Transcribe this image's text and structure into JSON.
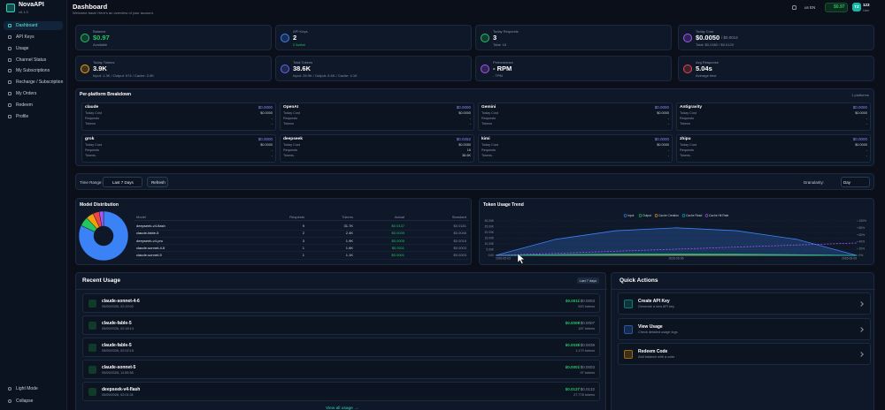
{
  "sidebar": {
    "brand": "NovaAPI",
    "version": "v0.1.0",
    "nav": [
      "Dashboard",
      "API Keys",
      "Usage",
      "Channel Status",
      "My Subscriptions",
      "Recharge / Subscription",
      "My Orders",
      "Redeem",
      "Profile"
    ],
    "footer": [
      "Light Mode",
      "Collapse"
    ]
  },
  "header": {
    "title": "Dashboard",
    "subtitle": "Welcome back! Here's an overview of your account.",
    "language": "us EN",
    "balance": "$0.97",
    "avatar": "TZ",
    "username": "123",
    "role": "User"
  },
  "stats": [
    {
      "label": "Balance",
      "value": "$0.97",
      "sub": "Available"
    },
    {
      "label": "API Keys",
      "value": "2",
      "sub": "2 Active"
    },
    {
      "label": "Today Requests",
      "value": "3",
      "sub": "Total: 16"
    },
    {
      "label": "Today Cost",
      "value": "$0.0050",
      "extra": "/ $0.0014",
      "sub": "Total: $0.0282 / $0.0120"
    },
    {
      "label": "Today Tokens",
      "value": "3.9K",
      "sub": "Input: 1.3K / Output: 574 / Cache: 2.0K"
    },
    {
      "label": "Total Tokens",
      "value": "38.6K",
      "sub": "Input: 28.9K / Output: 5.6K / Cache: 4.1K"
    },
    {
      "label": "Performance",
      "value": "- RPM",
      "sub": "- TPM"
    },
    {
      "label": "Avg Response",
      "value": "5.04s",
      "sub": "Average time"
    }
  ],
  "platforms": {
    "title": "Per-platform Breakdown",
    "count": "1 platforms",
    "row_labels": [
      "Today Cost",
      "Requests",
      "Tokens"
    ],
    "cards": [
      {
        "name": "claude",
        "cost": "$0.0000",
        "rows": [
          "$0.0000",
          "-",
          "-"
        ]
      },
      {
        "name": "OpenAI",
        "cost": "$0.0000",
        "rows": [
          "$0.0000",
          "-",
          "-"
        ]
      },
      {
        "name": "Gemini",
        "cost": "$0.0000",
        "rows": [
          "$0.0000",
          "-",
          "-"
        ]
      },
      {
        "name": "Antigravity",
        "cost": "$0.0000",
        "rows": [
          "$0.0000",
          "-",
          "-"
        ]
      },
      {
        "name": "grok",
        "cost": "$0.0000",
        "rows": [
          "$0.0000",
          "-",
          "-"
        ]
      },
      {
        "name": "deepseek",
        "cost": "$0.0252",
        "rows": [
          "$0.0050",
          "16",
          "38.6K"
        ]
      },
      {
        "name": "kimi",
        "cost": "$0.0000",
        "rows": [
          "$0.0000",
          "-",
          "-"
        ]
      },
      {
        "name": "zhipu",
        "cost": "$0.0000",
        "rows": [
          "$0.0000",
          "-",
          "-"
        ]
      }
    ]
  },
  "filters": {
    "time_range_label": "Time Range:",
    "time_range": "Last 7 Days",
    "refresh": "Refresh",
    "granularity_label": "Granularity:",
    "granularity": "Day"
  },
  "model_distribution": {
    "title": "Model Distribution",
    "columns": [
      "Model",
      "Requests",
      "Tokens",
      "Actual",
      "Standard"
    ],
    "rows": [
      {
        "model": "deepseek-v4-flash",
        "requests": 9,
        "tokens": {
          "value": 31700,
          "label": "31.7K"
        },
        "actual": "$0.0137",
        "standard": "$0.0181"
      },
      {
        "model": "claude-fable-5",
        "requests": 2,
        "tokens": {
          "value": 2400,
          "label": "2.4K"
        },
        "actual": "$0.0039",
        "standard": "$0.0046"
      },
      {
        "model": "deepseek-v4-pro",
        "requests": 3,
        "tokens": {
          "value": 1900,
          "label": "1.9K"
        },
        "actual": "$0.0005",
        "standard": "$0.0016"
      },
      {
        "model": "claude-sonnet-4-6",
        "requests": 1,
        "tokens": {
          "value": 1600,
          "label": "1.6K"
        },
        "actual": "$0.0011",
        "standard": "$0.0003"
      },
      {
        "model": "claude-sonnet-5",
        "requests": 1,
        "tokens": {
          "value": 1100,
          "label": "1.1K"
        },
        "actual": "$0.0001",
        "standard": "$0.0003"
      }
    ],
    "colors": [
      "#3b82f6",
      "#22c55e",
      "#f59e0b",
      "#ef4444",
      "#a855f7"
    ]
  },
  "token_trend": {
    "type": "line",
    "title": "Token Usage Trend",
    "categories": [
      "2026-05-03",
      null,
      null,
      "2026-05-06",
      null,
      null,
      "2026-05-09"
    ],
    "series": [
      {
        "name": "Input",
        "color": "#3b82f6",
        "values": [
          0,
          14000,
          21500,
          24000,
          21500,
          14000,
          0
        ]
      },
      {
        "name": "Output",
        "color": "#22c55e",
        "values": [
          0,
          600,
          1000,
          1200,
          1000,
          600,
          0
        ]
      },
      {
        "name": "Cache Creation",
        "color": "#f59e0b",
        "values": [
          0,
          0,
          0,
          0,
          0,
          0,
          0
        ]
      },
      {
        "name": "Cache Read",
        "color": "#06b6d4",
        "values": [
          0,
          300,
          500,
          600,
          500,
          300,
          0
        ]
      },
      {
        "name": "Cache Hit Rate",
        "color": "#a855f7",
        "axis": "y2",
        "values": [
          0,
          6,
          12,
          18,
          24,
          30,
          36
        ]
      }
    ],
    "ylim": [
      0,
      30000
    ],
    "yticks": [
      {
        "value": 0,
        "label": "0.00"
      },
      {
        "value": 5000,
        "label": "5.00K"
      },
      {
        "value": 10000,
        "label": "10.00K"
      },
      {
        "value": 15000,
        "label": "15.00K"
      },
      {
        "value": 20000,
        "label": "20.00K"
      },
      {
        "value": 25000,
        "label": "25.00K"
      },
      {
        "value": 30000,
        "label": "30.00K"
      }
    ],
    "y2lim": [
      0,
      100
    ],
    "y2ticks": [
      {
        "value": 0,
        "label": "0%"
      },
      {
        "value": 20,
        "label": "20%"
      },
      {
        "value": 40,
        "label": "40%"
      },
      {
        "value": 60,
        "label": "60%"
      },
      {
        "value": 80,
        "label": "80%"
      },
      {
        "value": 100,
        "label": "100%"
      }
    ],
    "grid": true
  },
  "recent_usage": {
    "title": "Recent Usage",
    "badge": "Last 7 days",
    "view_all": "View all usage →",
    "items": [
      {
        "model": "claude-sonnet-4-6",
        "time": "05/09/2026, 02:19:02",
        "actual": "$0.0011",
        "standard": "/ $0.0003",
        "tokens": "520 tokens"
      },
      {
        "model": "claude-fable-5",
        "time": "05/09/2026, 02:18:14",
        "actual": "$0.0009",
        "standard": "/ $0.0007",
        "tokens": "187 tokens"
      },
      {
        "model": "claude-fable-5",
        "time": "05/09/2026, 02:02:15",
        "actual": "$0.0030",
        "standard": "/ $0.0039",
        "tokens": "1,170 tokens"
      },
      {
        "model": "claude-sonnet-5",
        "time": "05/09/2026, 11:59:38",
        "actual": "$0.0001",
        "standard": "/ $0.0003",
        "tokens": "97 tokens"
      },
      {
        "model": "deepseek-v4-flash",
        "time": "05/09/2026, 02:01:31",
        "actual": "$0.0137",
        "standard": "/ $0.0132",
        "tokens": "27,778 tokens"
      }
    ]
  },
  "quick_actions": {
    "title": "Quick Actions",
    "items": [
      {
        "title": "Create API Key",
        "desc": "Generate a new API key"
      },
      {
        "title": "View Usage",
        "desc": "Check detailed usage logs"
      },
      {
        "title": "Redeem Code",
        "desc": "Add balance with a code"
      }
    ]
  }
}
